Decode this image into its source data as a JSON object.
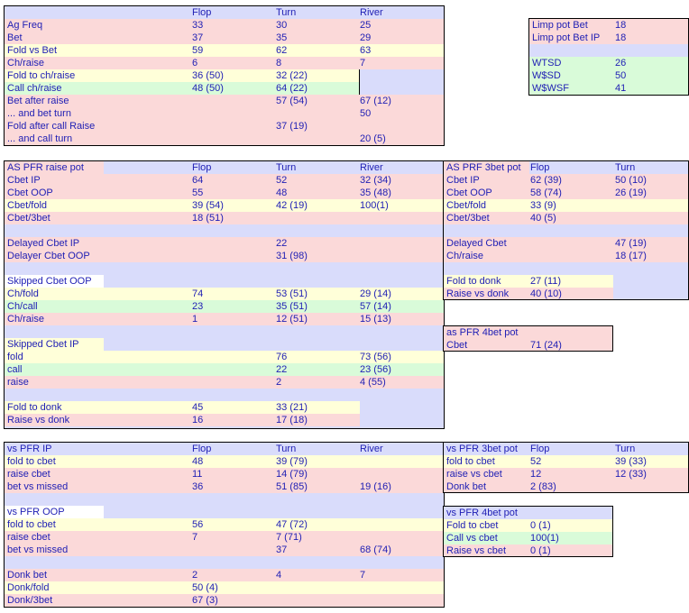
{
  "colors": {
    "red": "#fbd9d9",
    "yellow": "#ffffd9",
    "green": "#d9fbd9",
    "blue": "#d9dcfb",
    "white": "#ffffff",
    "text": "#1e1eb4"
  },
  "main": {
    "header": [
      "",
      "Flop",
      "Turn",
      "River"
    ],
    "rows": [
      {
        "label": "Ag Freq",
        "c": [
          "33",
          "30",
          "25"
        ],
        "bg": "red"
      },
      {
        "label": "Bet",
        "c": [
          "37",
          "35",
          "29"
        ],
        "bg": "red"
      },
      {
        "label": "Fold vs Bet",
        "c": [
          "59",
          "62",
          "63"
        ],
        "bg": "yellow"
      },
      {
        "label": "Ch/raise",
        "c": [
          "6",
          "8",
          "7"
        ],
        "bg": "red"
      },
      {
        "label": "Fold to ch/raise",
        "c": [
          "36 (50)",
          "32 (22)",
          ""
        ],
        "bg": "yellow"
      },
      {
        "label": "Call ch/raise",
        "c": [
          "48 (50)",
          "64 (22)",
          ""
        ],
        "bg": "green"
      },
      {
        "label": "Bet after raise",
        "c": [
          "",
          "57 (54)",
          "67 (12)"
        ],
        "bg": "red"
      },
      {
        "label": "... and bet turn",
        "c": [
          "",
          "",
          "50"
        ],
        "bg": "red"
      },
      {
        "label": "Fold after call Raise",
        "c": [
          "",
          "37 (19)",
          ""
        ],
        "bg": "red"
      },
      {
        "label": "... and call turn",
        "c": [
          "",
          "",
          "20 (5)"
        ],
        "bg": "red"
      }
    ]
  },
  "limp": {
    "rows": [
      {
        "label": "Limp pot Bet",
        "c": [
          "18"
        ],
        "bg": "red"
      },
      {
        "label": "Limp pot Bet IP",
        "c": [
          "18"
        ],
        "bg": "red"
      },
      {
        "label": "",
        "c": [
          ""
        ],
        "bg": "blue"
      },
      {
        "label": "WTSD",
        "c": [
          "26"
        ],
        "bg": "green"
      },
      {
        "label": "W$SD",
        "c": [
          "50"
        ],
        "bg": "green"
      },
      {
        "label": "W$WSF",
        "c": [
          "41"
        ],
        "bg": "green"
      }
    ]
  },
  "pfr": {
    "header": [
      "AS PFR raise pot",
      "Flop",
      "Turn",
      "River"
    ],
    "rows": [
      {
        "label": "Cbet IP",
        "c": [
          "64",
          "52",
          "32 (34)"
        ],
        "bg": "red"
      },
      {
        "label": "Cbet OOP",
        "c": [
          "55",
          "48",
          "35 (48)"
        ],
        "bg": "red"
      },
      {
        "label": "Cbet/fold",
        "c": [
          "39 (54)",
          "42 (19)",
          "100(1)"
        ],
        "bg": "yellow"
      },
      {
        "label": "Cbet/3bet",
        "c": [
          "18 (51)",
          "",
          ""
        ],
        "bg": "red"
      },
      {
        "label": "",
        "c": [
          "",
          "",
          ""
        ],
        "bg": "blue"
      },
      {
        "label": "Delayed Cbet IP",
        "c": [
          "",
          "22",
          ""
        ],
        "bg": "red"
      },
      {
        "label": "Delayer Cbet OOP",
        "c": [
          "",
          "31 (98)",
          ""
        ],
        "bg": "red"
      },
      {
        "label": "",
        "c": [
          "",
          "",
          ""
        ],
        "bg": "blue"
      },
      {
        "label": "Skipped Cbet OOP",
        "c": [
          "",
          "",
          ""
        ],
        "bg": "blue"
      },
      {
        "label": "Ch/fold",
        "c": [
          "74",
          "53 (51)",
          "29 (14)"
        ],
        "bg": "yellow"
      },
      {
        "label": "Ch/call",
        "c": [
          "23",
          "35 (51)",
          "57 (14)"
        ],
        "bg": "green"
      },
      {
        "label": "Ch/raise",
        "c": [
          "1",
          "12 (51)",
          "15 (13)"
        ],
        "bg": "red"
      },
      {
        "label": "",
        "c": [
          "",
          "",
          ""
        ],
        "bg": "blue"
      },
      {
        "label": "Skipped Cbet IP",
        "c": [
          "",
          "",
          ""
        ],
        "bg": "blue"
      },
      {
        "label": "fold",
        "c": [
          "",
          "76",
          "73 (56)"
        ],
        "bg": "yellow"
      },
      {
        "label": "call",
        "c": [
          "",
          "22",
          "23 (56)"
        ],
        "bg": "green"
      },
      {
        "label": "raise",
        "c": [
          "",
          "2",
          "4 (55)"
        ],
        "bg": "red"
      },
      {
        "label": "",
        "c": [
          "",
          "",
          ""
        ],
        "bg": "blue"
      },
      {
        "label": "Fold to donk",
        "c": [
          "45",
          "33 (21)",
          ""
        ],
        "bg": "yellow"
      },
      {
        "label": "Raise vs donk",
        "c": [
          "16",
          "17 (18)",
          ""
        ],
        "bg": "red"
      }
    ]
  },
  "prf3bet": {
    "header": [
      "AS PRF 3bet pot",
      "Flop",
      "Turn"
    ],
    "rows": [
      {
        "label": "Cbet IP",
        "c": [
          "62 (39)",
          "50 (10)"
        ],
        "bg": "red"
      },
      {
        "label": "Cbet OOP",
        "c": [
          "58 (74)",
          "26 (19)"
        ],
        "bg": "red"
      },
      {
        "label": "Cbet/fold",
        "c": [
          "33 (9)",
          ""
        ],
        "bg": "yellow"
      },
      {
        "label": "Cbet/3bet",
        "c": [
          "40 (5)",
          ""
        ],
        "bg": "red"
      },
      {
        "label": "",
        "c": [
          "",
          ""
        ],
        "bg": "blue"
      },
      {
        "label": "Delayed Cbet",
        "c": [
          "",
          "47 (19)"
        ],
        "bg": "red"
      },
      {
        "label": "Ch/raise",
        "c": [
          "",
          "18 (17)"
        ],
        "bg": "red"
      },
      {
        "label": "",
        "c": [
          "",
          ""
        ],
        "bg": "blue"
      },
      {
        "label": "Fold to donk",
        "c": [
          "27 (11)",
          ""
        ],
        "bg": "yellow"
      },
      {
        "label": "Raise vs donk",
        "c": [
          "40 (10)",
          ""
        ],
        "bg": "red"
      }
    ]
  },
  "pfr4bet": {
    "rows": [
      {
        "label": "as PFR 4bet pot",
        "c": [
          ""
        ],
        "bg": "red"
      },
      {
        "label": "Cbet",
        "c": [
          "71 (24)"
        ],
        "bg": "red"
      }
    ]
  },
  "vspfr": {
    "header": [
      "vs PFR IP",
      "Flop",
      "Turn",
      "River"
    ],
    "rows": [
      {
        "label": "fold to cbet",
        "c": [
          "48",
          "39 (79)",
          ""
        ],
        "bg": "yellow"
      },
      {
        "label": "raise cbet",
        "c": [
          "11",
          "14 (79)",
          ""
        ],
        "bg": "red"
      },
      {
        "label": "bet vs missed",
        "c": [
          "36",
          "51 (85)",
          "19 (16)"
        ],
        "bg": "red"
      },
      {
        "label": "",
        "c": [
          "",
          "",
          ""
        ],
        "bg": "blue"
      },
      {
        "label": "vs PFR OOP",
        "c": [
          "",
          "",
          ""
        ],
        "bg": "blue"
      },
      {
        "label": "fold to cbet",
        "c": [
          "56",
          "47 (72)",
          ""
        ],
        "bg": "yellow"
      },
      {
        "label": "raise cbet",
        "c": [
          "7",
          "7 (71)",
          ""
        ],
        "bg": "red"
      },
      {
        "label": "bet vs missed",
        "c": [
          "",
          "37",
          "68 (74)"
        ],
        "bg": "red"
      },
      {
        "label": "",
        "c": [
          "",
          "",
          ""
        ],
        "bg": "blue"
      },
      {
        "label": "Donk bet",
        "c": [
          "2",
          "4",
          "7"
        ],
        "bg": "red"
      },
      {
        "label": "Donk/fold",
        "c": [
          "50 (4)",
          "",
          ""
        ],
        "bg": "yellow"
      },
      {
        "label": "Donk/3bet",
        "c": [
          "67 (3)",
          "",
          ""
        ],
        "bg": "red"
      }
    ]
  },
  "vs3bet": {
    "header": [
      "vs PFR 3bet pot",
      "Flop",
      "Turn"
    ],
    "rows": [
      {
        "label": "fold to cbet",
        "c": [
          "52",
          "39 (33)"
        ],
        "bg": "yellow"
      },
      {
        "label": "raise vs cbet",
        "c": [
          "12",
          "12 (33)"
        ],
        "bg": "red"
      },
      {
        "label": "Donk bet",
        "c": [
          "2 (83)",
          ""
        ],
        "bg": "red"
      }
    ]
  },
  "vs4bet": {
    "rows": [
      {
        "label": "vs PFR 4bet pot",
        "c": [
          ""
        ],
        "bg": "blue"
      },
      {
        "label": "Fold to cbet",
        "c": [
          "0 (1)"
        ],
        "bg": "yellow"
      },
      {
        "label": "Call vs cbet",
        "c": [
          "100(1)"
        ],
        "bg": "green"
      },
      {
        "label": "Raise vs cbet",
        "c": [
          "0 (1)"
        ],
        "bg": "red"
      }
    ]
  }
}
